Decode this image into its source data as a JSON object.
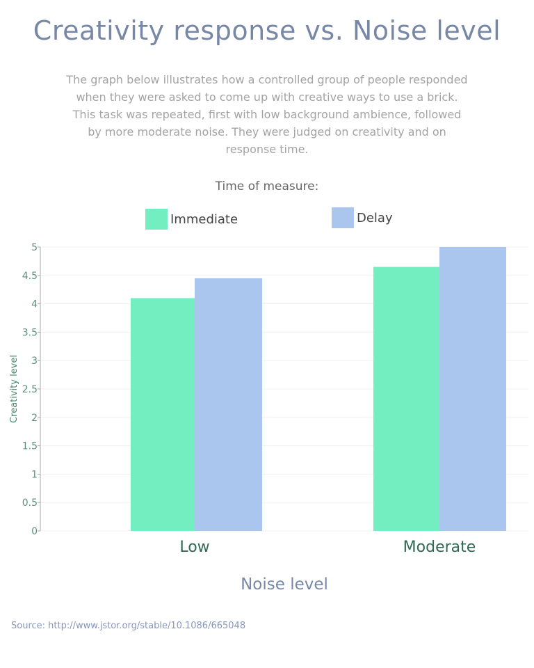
{
  "title": "Creativity response vs. Noise level",
  "description": "The graph below illustrates how a controlled group of people responded when they were asked to come up with creative ways to use a brick. This task was repeated, first with low background ambience, followed by more moderate noise. They were judged on creativity and on response time.",
  "source": "Source: http://www.jstor.org/stable/10.1086/665048",
  "chart_data": {
    "type": "bar",
    "legend_title": "Time of measure:",
    "legend_placement": "top",
    "categories": [
      "Low",
      "Moderate"
    ],
    "series": [
      {
        "name": "Immediate",
        "values": [
          4.1,
          4.65
        ],
        "color": "#72eec0"
      },
      {
        "name": "Delay",
        "values": [
          4.45,
          5
        ],
        "color": "#aac5ee"
      }
    ],
    "xlabel": "Noise level",
    "ylabel": "Creativity level",
    "ylim": [
      0,
      5
    ],
    "yticks": [
      "0",
      "0.5",
      "1",
      "1.5",
      "2",
      "2.5",
      "3",
      "3.5",
      "4",
      "4.5",
      "5"
    ],
    "grid": true
  }
}
